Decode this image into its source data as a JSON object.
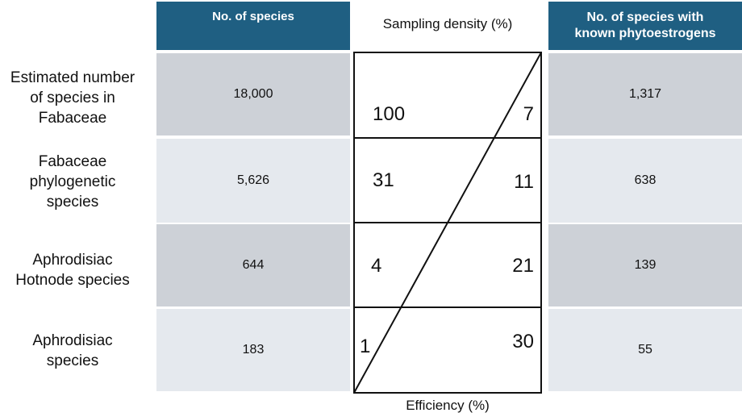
{
  "headers": {
    "species_count": "No. of species",
    "sampling_density": "Sampling density (%)",
    "phytoestrogen_species_line1": "No. of species with",
    "phytoestrogen_species_line2": "known phytoestrogens",
    "efficiency": "Efficiency (%)"
  },
  "rows": [
    {
      "label_lines": [
        "Estimated number",
        "of species in",
        "Fabaceae"
      ],
      "species": "18,000",
      "density": "100",
      "efficiency": "7",
      "phytoestrogen": "1,317"
    },
    {
      "label_lines": [
        "Fabaceae",
        "phylogenetic",
        "species"
      ],
      "species": "5,626",
      "density": "31",
      "efficiency": "11",
      "phytoestrogen": "638"
    },
    {
      "label_lines": [
        "Aphrodisiac",
        "Hotnode species"
      ],
      "species": "644",
      "density": "4",
      "efficiency": "21",
      "phytoestrogen": "139"
    },
    {
      "label_lines": [
        "Aphrodisiac",
        "species"
      ],
      "species": "183",
      "density": "1",
      "efficiency": "30",
      "phytoestrogen": "55"
    }
  ],
  "colors": {
    "header_bg": "#1f5f82",
    "row_dark": "#cdd1d7",
    "row_light": "#e5e9ee"
  }
}
